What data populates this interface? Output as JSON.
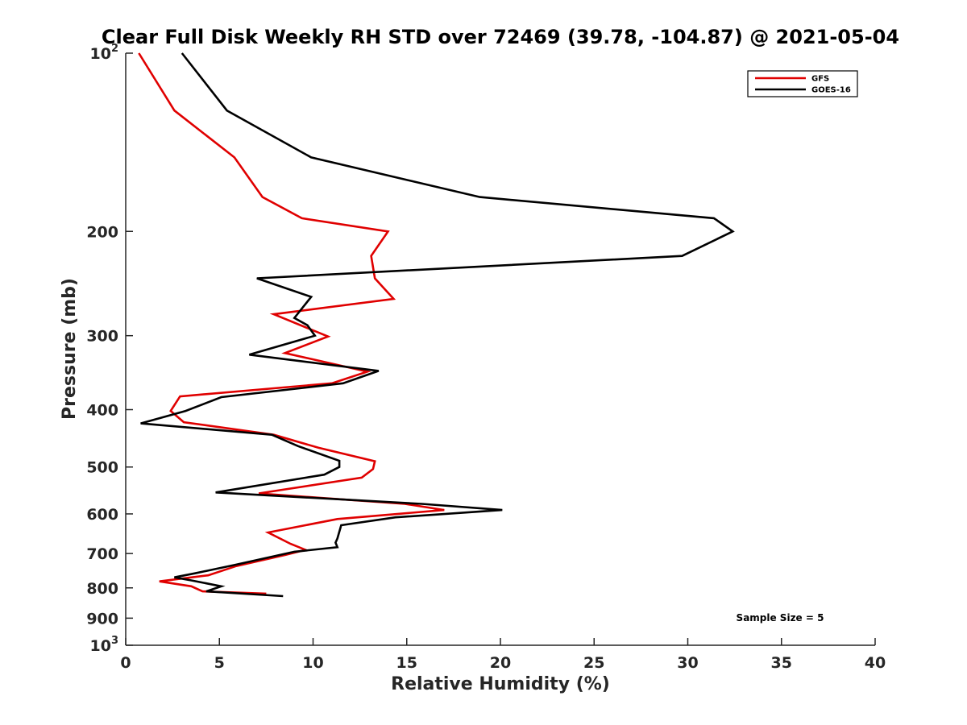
{
  "chart_data": {
    "type": "line",
    "title": "Clear Full Disk Weekly RH STD over 72469 (39.78, -104.87) @ 2021-05-04",
    "xlabel": "Relative Humidity (%)",
    "ylabel": "Pressure (mb)",
    "xlim": [
      0,
      40
    ],
    "ylim": [
      100,
      1000
    ],
    "y_scale": "log",
    "y_reversed": true,
    "x_ticks": [
      "0",
      "5",
      "10",
      "15",
      "20",
      "25",
      "30",
      "35",
      "40"
    ],
    "y_ticks": [
      {
        "value": 100,
        "base": "10",
        "exp": "2"
      },
      {
        "value": 200,
        "label": "200"
      },
      {
        "value": 300,
        "label": "300"
      },
      {
        "value": 400,
        "label": "400"
      },
      {
        "value": 500,
        "label": "500"
      },
      {
        "value": 600,
        "label": "600"
      },
      {
        "value": 700,
        "label": "700"
      },
      {
        "value": 800,
        "label": "800"
      },
      {
        "value": 900,
        "label": "900"
      },
      {
        "value": 1000,
        "base": "10",
        "exp": "3"
      }
    ],
    "legend_position": "top-right",
    "annotation": "Sample Size = 5",
    "series": [
      {
        "name": "GFS",
        "color": "#e00000",
        "points": [
          [
            0.7,
            100
          ],
          [
            2.6,
            125
          ],
          [
            5.8,
            150
          ],
          [
            7.3,
            175
          ],
          [
            9.4,
            190
          ],
          [
            14.0,
            200
          ],
          [
            13.1,
            220
          ],
          [
            13.3,
            240
          ],
          [
            14.3,
            260
          ],
          [
            7.9,
            276
          ],
          [
            10.8,
            301
          ],
          [
            8.5,
            321
          ],
          [
            12.9,
            345
          ],
          [
            11.0,
            361
          ],
          [
            2.9,
            380
          ],
          [
            2.4,
            402
          ],
          [
            3.1,
            420
          ],
          [
            7.9,
            441
          ],
          [
            10.3,
            464
          ],
          [
            13.3,
            489
          ],
          [
            13.2,
            504
          ],
          [
            12.6,
            521
          ],
          [
            7.1,
            554
          ],
          [
            14.9,
            577
          ],
          [
            17.0,
            591
          ],
          [
            11.3,
            612
          ],
          [
            7.6,
            645
          ],
          [
            8.8,
            674
          ],
          [
            9.6,
            690
          ],
          [
            8.5,
            704
          ],
          [
            5.9,
            735
          ],
          [
            4.4,
            762
          ],
          [
            1.8,
            780
          ],
          [
            3.5,
            795
          ],
          [
            4.1,
            811
          ],
          [
            7.5,
            818
          ]
        ]
      },
      {
        "name": "GOES-16",
        "color": "#000000",
        "points": [
          [
            3.0,
            100
          ],
          [
            5.4,
            125
          ],
          [
            9.9,
            150
          ],
          [
            18.9,
            175
          ],
          [
            31.4,
            190
          ],
          [
            32.4,
            200
          ],
          [
            29.7,
            220
          ],
          [
            7.0,
            240
          ],
          [
            9.9,
            258
          ],
          [
            9.0,
            280
          ],
          [
            9.7,
            288
          ],
          [
            10.1,
            300
          ],
          [
            6.6,
            323
          ],
          [
            13.5,
            344
          ],
          [
            11.6,
            361
          ],
          [
            5.1,
            381
          ],
          [
            3.2,
            402
          ],
          [
            0.8,
            422
          ],
          [
            7.8,
            441
          ],
          [
            9.2,
            461
          ],
          [
            11.4,
            488
          ],
          [
            11.4,
            500
          ],
          [
            10.6,
            515
          ],
          [
            4.8,
            552
          ],
          [
            15.8,
            577
          ],
          [
            20.1,
            591
          ],
          [
            14.4,
            608
          ],
          [
            11.5,
            627
          ],
          [
            11.3,
            660
          ],
          [
            11.2,
            671
          ],
          [
            11.3,
            683
          ],
          [
            9.0,
            695
          ],
          [
            5.8,
            732
          ],
          [
            3.7,
            756
          ],
          [
            2.6,
            768
          ],
          [
            3.5,
            777
          ],
          [
            5.1,
            795
          ],
          [
            4.3,
            811
          ],
          [
            8.4,
            826
          ]
        ]
      }
    ]
  }
}
